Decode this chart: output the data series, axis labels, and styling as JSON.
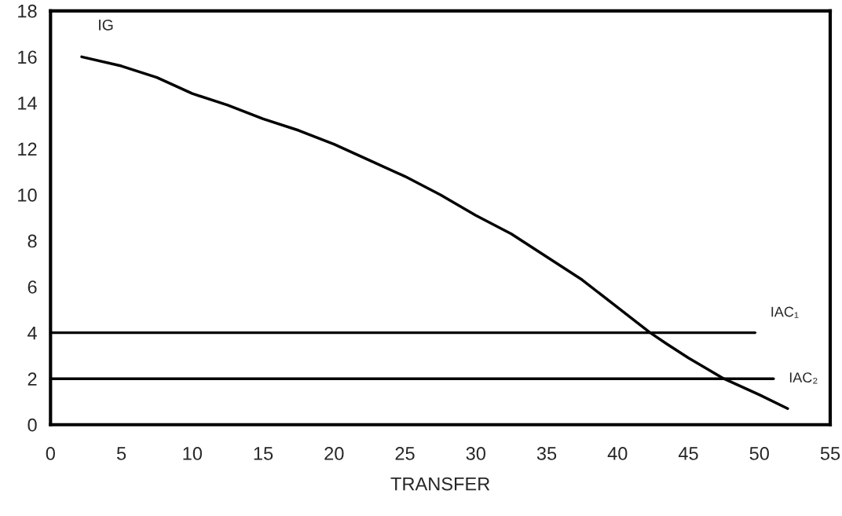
{
  "chart_data": {
    "type": "line",
    "xlabel": "TRANSFER",
    "xlim": [
      0,
      55
    ],
    "xticks": [
      0,
      5,
      10,
      15,
      20,
      25,
      30,
      35,
      40,
      45,
      50,
      55
    ],
    "ylim": [
      0,
      18
    ],
    "yticks": [
      0,
      2,
      4,
      6,
      8,
      10,
      12,
      14,
      16,
      18
    ],
    "grid": false,
    "legend": false,
    "marker": "none",
    "line_style": "solid",
    "series": [
      {
        "name": "IG",
        "color": "#000000",
        "x": [
          2.2,
          5,
          7.5,
          10,
          12.5,
          15,
          17.5,
          20,
          22.5,
          25,
          27.5,
          30,
          32.5,
          35,
          37.5,
          40,
          42.3,
          43.5,
          45,
          47.5,
          50,
          52
        ],
        "values": [
          16,
          15.6,
          15.1,
          14.4,
          13.9,
          13.3,
          12.8,
          12.2,
          11.5,
          10.8,
          10.0,
          9.1,
          8.3,
          7.3,
          6.3,
          5.1,
          4.0,
          3.5,
          2.9,
          2.0,
          1.3,
          0.7
        ]
      },
      {
        "name": "IAC₁",
        "color": "#000000",
        "x": [
          0,
          49.7
        ],
        "values": [
          4,
          4
        ]
      },
      {
        "name": "IAC₂",
        "color": "#000000",
        "x": [
          0,
          51
        ],
        "values": [
          2,
          2
        ]
      }
    ]
  }
}
